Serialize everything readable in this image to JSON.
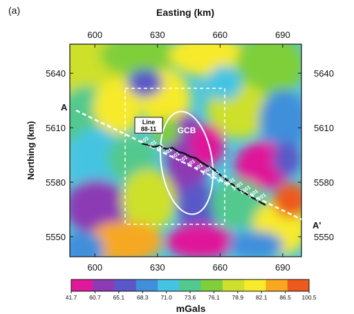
{
  "panel_label": "(a)",
  "axes": {
    "x_title": "Easting (km)",
    "y_title": "Northing (km)",
    "x_ticks": [
      "600",
      "630",
      "660",
      "690"
    ],
    "y_ticks": [
      "5640",
      "5610",
      "5580",
      "5550"
    ],
    "x_tick_values": [
      600,
      630,
      660,
      690
    ],
    "y_tick_values": [
      5640,
      5610,
      5580,
      5550
    ],
    "x_range": [
      588,
      699
    ],
    "y_range": [
      5539,
      5656
    ]
  },
  "map": {
    "type": "gravity anomaly map",
    "study_area": "dashed white rectangle",
    "profile": {
      "start_label": "A",
      "end_label": "A'"
    },
    "line_label": "Line\n88-11",
    "line_label_lines": [
      "Line",
      "88-11"
    ],
    "feature_label": "GCB",
    "shotpoints": [
      "101",
      "201",
      "401",
      "501",
      "601",
      "701",
      "801",
      "901",
      "1001",
      "1101",
      "1201",
      "1301",
      "1401",
      "1501",
      "1601",
      "1701"
    ]
  },
  "colorbar": {
    "title": "mGals",
    "ticks": [
      "41.7",
      "60.7",
      "65.1",
      "68.3",
      "71.0",
      "73.6",
      "76.1",
      "78.9",
      "82.1",
      "86.5",
      "100.5"
    ],
    "colors": [
      "#e0199a",
      "#8d3bb5",
      "#5a58c8",
      "#3f8fdb",
      "#45c4e2",
      "#52c98e",
      "#7fcf3a",
      "#cde02c",
      "#f6ea2a",
      "#f7a820",
      "#ee5a1d"
    ]
  }
}
